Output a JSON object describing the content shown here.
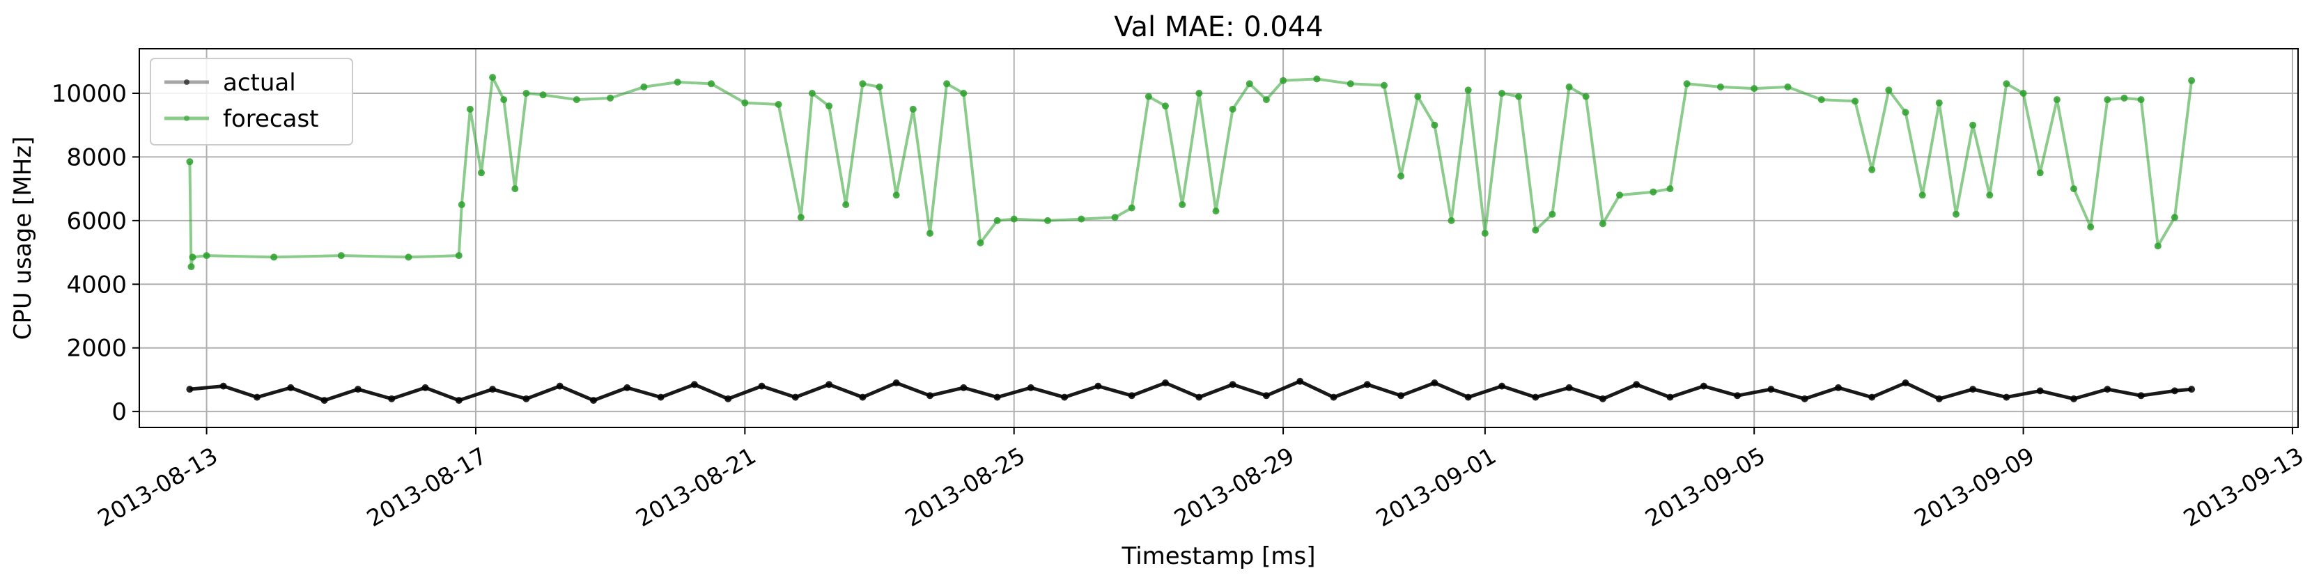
{
  "chart_data": {
    "type": "line",
    "title": "Val MAE: 0.044",
    "xlabel": "Timestamp [ms]",
    "ylabel": "CPU usage [MHz]",
    "xlim": [
      "2013-08-12T00:00",
      "2013-09-13T02:00"
    ],
    "ylim": [
      -500,
      11400
    ],
    "x_ticks": [
      "2013-08-13",
      "2013-08-17",
      "2013-08-21",
      "2013-08-25",
      "2013-08-29",
      "2013-09-01",
      "2013-09-05",
      "2013-09-09",
      "2013-09-13"
    ],
    "y_ticks": [
      0,
      2000,
      4000,
      6000,
      8000,
      10000
    ],
    "grid": true,
    "legend_position": "top-left",
    "series": [
      {
        "name": "actual",
        "color": "#000000",
        "x": [
          "2013-08-12T18:00",
          "2013-08-13T06:00",
          "2013-08-13T18:00",
          "2013-08-14T06:00",
          "2013-08-14T18:00",
          "2013-08-15T06:00",
          "2013-08-15T18:00",
          "2013-08-16T06:00",
          "2013-08-16T18:00",
          "2013-08-17T06:00",
          "2013-08-17T18:00",
          "2013-08-18T06:00",
          "2013-08-18T18:00",
          "2013-08-19T06:00",
          "2013-08-19T18:00",
          "2013-08-20T06:00",
          "2013-08-20T18:00",
          "2013-08-21T06:00",
          "2013-08-21T18:00",
          "2013-08-22T06:00",
          "2013-08-22T18:00",
          "2013-08-23T06:00",
          "2013-08-23T18:00",
          "2013-08-24T06:00",
          "2013-08-24T18:00",
          "2013-08-25T06:00",
          "2013-08-25T18:00",
          "2013-08-26T06:00",
          "2013-08-26T18:00",
          "2013-08-27T06:00",
          "2013-08-27T18:00",
          "2013-08-28T06:00",
          "2013-08-28T18:00",
          "2013-08-29T06:00",
          "2013-08-29T18:00",
          "2013-08-30T06:00",
          "2013-08-30T18:00",
          "2013-08-31T06:00",
          "2013-08-31T18:00",
          "2013-09-01T06:00",
          "2013-09-01T18:00",
          "2013-09-02T06:00",
          "2013-09-02T18:00",
          "2013-09-03T06:00",
          "2013-09-03T18:00",
          "2013-09-04T06:00",
          "2013-09-04T18:00",
          "2013-09-05T06:00",
          "2013-09-05T18:00",
          "2013-09-06T06:00",
          "2013-09-06T18:00",
          "2013-09-07T06:00",
          "2013-09-07T18:00",
          "2013-09-08T06:00",
          "2013-09-08T18:00",
          "2013-09-09T06:00",
          "2013-09-09T18:00",
          "2013-09-10T06:00",
          "2013-09-10T18:00",
          "2013-09-11T06:00",
          "2013-09-11T12:00"
        ],
        "values": [
          700,
          800,
          450,
          750,
          350,
          700,
          400,
          750,
          350,
          700,
          400,
          800,
          350,
          750,
          450,
          850,
          400,
          800,
          450,
          850,
          450,
          900,
          500,
          750,
          450,
          750,
          450,
          800,
          500,
          900,
          450,
          850,
          500,
          950,
          450,
          850,
          500,
          900,
          450,
          800,
          450,
          750,
          400,
          850,
          450,
          800,
          500,
          700,
          400,
          750,
          450,
          900,
          400,
          700,
          450,
          650,
          400,
          700,
          500,
          650,
          700
        ]
      },
      {
        "name": "forecast",
        "color": "#2ca02c",
        "x": [
          "2013-08-12T18:00",
          "2013-08-12T18:30",
          "2013-08-12T19:00",
          "2013-08-13T00:00",
          "2013-08-14T00:00",
          "2013-08-15T00:00",
          "2013-08-16T00:00",
          "2013-08-16T18:00",
          "2013-08-16T19:00",
          "2013-08-16T22:00",
          "2013-08-17T02:00",
          "2013-08-17T06:00",
          "2013-08-17T10:00",
          "2013-08-17T14:00",
          "2013-08-17T18:00",
          "2013-08-18T00:00",
          "2013-08-18T12:00",
          "2013-08-19T00:00",
          "2013-08-19T12:00",
          "2013-08-20T00:00",
          "2013-08-20T12:00",
          "2013-08-21T00:00",
          "2013-08-21T12:00",
          "2013-08-21T20:00",
          "2013-08-22T00:00",
          "2013-08-22T06:00",
          "2013-08-22T12:00",
          "2013-08-22T18:00",
          "2013-08-23T00:00",
          "2013-08-23T06:00",
          "2013-08-23T12:00",
          "2013-08-23T18:00",
          "2013-08-24T00:00",
          "2013-08-24T06:00",
          "2013-08-24T12:00",
          "2013-08-24T18:00",
          "2013-08-25T00:00",
          "2013-08-25T12:00",
          "2013-08-26T00:00",
          "2013-08-26T12:00",
          "2013-08-26T18:00",
          "2013-08-27T00:00",
          "2013-08-27T06:00",
          "2013-08-27T12:00",
          "2013-08-27T18:00",
          "2013-08-28T00:00",
          "2013-08-28T06:00",
          "2013-08-28T12:00",
          "2013-08-28T18:00",
          "2013-08-29T00:00",
          "2013-08-29T12:00",
          "2013-08-30T00:00",
          "2013-08-30T12:00",
          "2013-08-30T18:00",
          "2013-08-31T00:00",
          "2013-08-31T06:00",
          "2013-08-31T12:00",
          "2013-08-31T18:00",
          "2013-09-01T00:00",
          "2013-09-01T06:00",
          "2013-09-01T12:00",
          "2013-09-01T18:00",
          "2013-09-02T00:00",
          "2013-09-02T06:00",
          "2013-09-02T12:00",
          "2013-09-02T18:00",
          "2013-09-03T00:00",
          "2013-09-03T12:00",
          "2013-09-03T18:00",
          "2013-09-04T00:00",
          "2013-09-04T12:00",
          "2013-09-05T00:00",
          "2013-09-05T12:00",
          "2013-09-06T00:00",
          "2013-09-06T12:00",
          "2013-09-06T18:00",
          "2013-09-07T00:00",
          "2013-09-07T06:00",
          "2013-09-07T12:00",
          "2013-09-07T18:00",
          "2013-09-08T00:00",
          "2013-09-08T06:00",
          "2013-09-08T12:00",
          "2013-09-08T18:00",
          "2013-09-09T00:00",
          "2013-09-09T06:00",
          "2013-09-09T12:00",
          "2013-09-09T18:00",
          "2013-09-10T00:00",
          "2013-09-10T06:00",
          "2013-09-10T12:00",
          "2013-09-10T18:00",
          "2013-09-11T00:00",
          "2013-09-11T06:00",
          "2013-09-11T12:00"
        ],
        "values": [
          7850,
          4550,
          4850,
          4900,
          4850,
          4900,
          4850,
          4900,
          6500,
          9500,
          7500,
          10500,
          9800,
          7000,
          10000,
          9950,
          9800,
          9850,
          10200,
          10350,
          10300,
          9700,
          9650,
          6100,
          10000,
          9600,
          6500,
          10300,
          10200,
          6800,
          9500,
          5600,
          10300,
          10000,
          5300,
          6000,
          6050,
          6000,
          6050,
          6100,
          6400,
          9900,
          9600,
          6500,
          10000,
          6300,
          9500,
          10300,
          9800,
          10400,
          10450,
          10300,
          10250,
          7400,
          9900,
          9000,
          6000,
          10100,
          5600,
          10000,
          9900,
          5700,
          6200,
          10200,
          9900,
          5900,
          6800,
          6900,
          7000,
          10300,
          10200,
          10150,
          10200,
          9800,
          9750,
          7600,
          10100,
          9400,
          6800,
          9700,
          6200,
          9000,
          6800,
          10300,
          10000,
          7500,
          9800,
          7000,
          5800,
          9800,
          9850,
          9800,
          5200,
          6100,
          10400
        ]
      }
    ]
  }
}
